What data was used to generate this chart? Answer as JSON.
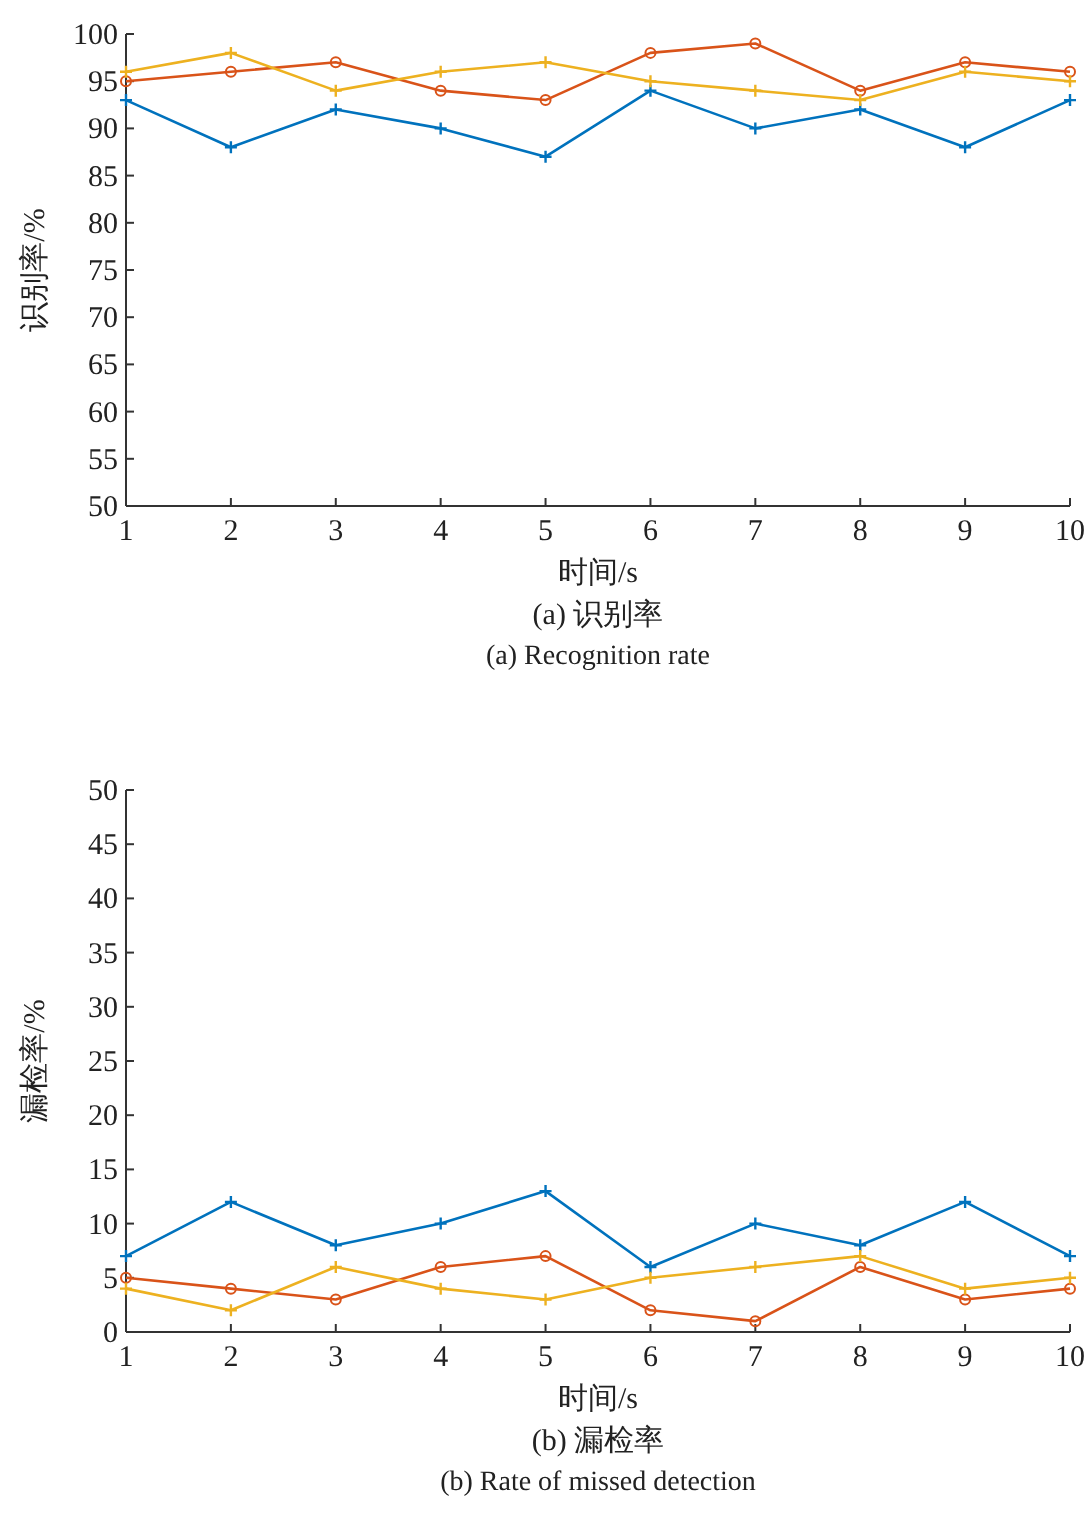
{
  "chart_data": [
    {
      "type": "line",
      "title": "(a) 识别率",
      "subtitle": "(a) Recognition rate",
      "xlabel": "时间/s",
      "ylabel": "识别率/%",
      "x": [
        1,
        2,
        3,
        4,
        5,
        6,
        7,
        8,
        9,
        10
      ],
      "xlim": [
        1,
        10
      ],
      "xticks": [
        1,
        2,
        3,
        4,
        5,
        6,
        7,
        8,
        9,
        10
      ],
      "ylim": [
        50,
        100
      ],
      "yticks": [
        50,
        55,
        60,
        65,
        70,
        75,
        80,
        85,
        90,
        95,
        100
      ],
      "grid": false,
      "series": [
        {
          "color": "#0072bd",
          "marker": "cross",
          "values": [
            93,
            88,
            92,
            90,
            87,
            94,
            90,
            92,
            88,
            93
          ]
        },
        {
          "color": "#d95319",
          "marker": "circle",
          "values": [
            95,
            96,
            97,
            94,
            93,
            98,
            99,
            94,
            97,
            96
          ]
        },
        {
          "color": "#edb120",
          "marker": "cross",
          "values": [
            96,
            98,
            94,
            96,
            97,
            95,
            94,
            93,
            96,
            95
          ]
        }
      ]
    },
    {
      "type": "line",
      "title": "(b) 漏检率",
      "subtitle": "(b) Rate of missed detection",
      "xlabel": "时间/s",
      "ylabel": "漏检率/%",
      "x": [
        1,
        2,
        3,
        4,
        5,
        6,
        7,
        8,
        9,
        10
      ],
      "xlim": [
        1,
        10
      ],
      "xticks": [
        1,
        2,
        3,
        4,
        5,
        6,
        7,
        8,
        9,
        10
      ],
      "ylim": [
        0,
        50
      ],
      "yticks": [
        0,
        5,
        10,
        15,
        20,
        25,
        30,
        35,
        40,
        45,
        50
      ],
      "grid": false,
      "series": [
        {
          "color": "#0072bd",
          "marker": "cross",
          "values": [
            7,
            12,
            8,
            10,
            13,
            6,
            10,
            8,
            12,
            7
          ]
        },
        {
          "color": "#d95319",
          "marker": "circle",
          "values": [
            5,
            4,
            3,
            6,
            7,
            2,
            1,
            6,
            3,
            4
          ]
        },
        {
          "color": "#edb120",
          "marker": "cross",
          "values": [
            4,
            2,
            6,
            4,
            3,
            5,
            6,
            7,
            4,
            5
          ]
        }
      ]
    }
  ]
}
